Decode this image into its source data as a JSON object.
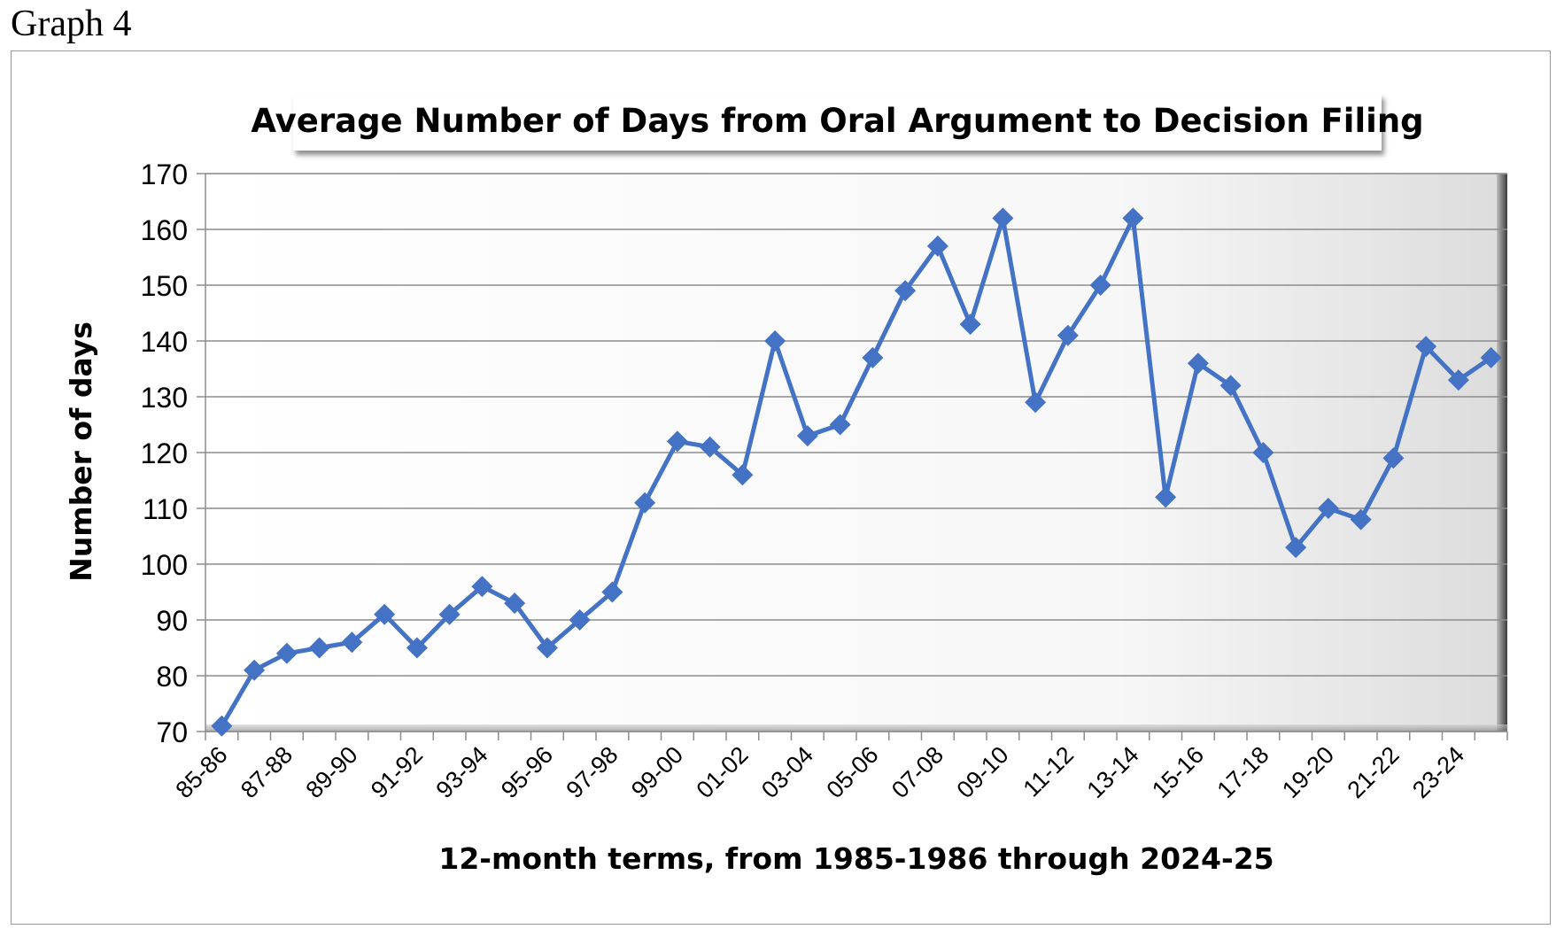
{
  "page": {
    "label": "Graph 4"
  },
  "chart_data": {
    "type": "line",
    "title": "Average Number of Days from Oral Argument to Decision Filing",
    "xlabel": "12-month terms, from 1985-1986 through 2024-25",
    "ylabel": "Number of days",
    "ylim": [
      70,
      170
    ],
    "yticks": [
      70,
      80,
      90,
      100,
      110,
      120,
      130,
      140,
      150,
      160,
      170
    ],
    "grid": true,
    "legend": "none",
    "line_color": "#4472C4",
    "marker": "diamond",
    "categories": [
      "85-86",
      "86-87",
      "87-88",
      "88-89",
      "89-90",
      "90-91",
      "91-92",
      "92-93",
      "93-94",
      "94-95",
      "95-96",
      "96-97",
      "97-98",
      "98-99",
      "99-00",
      "00-01",
      "01-02",
      "02-03",
      "03-04",
      "04-05",
      "05-06",
      "06-07",
      "07-08",
      "08-09",
      "09-10",
      "10-11",
      "11-12",
      "12-13",
      "13-14",
      "14-15",
      "15-16",
      "16-17",
      "17-18",
      "18-19",
      "19-20",
      "20-21",
      "21-22",
      "22-23",
      "23-24",
      "24-25"
    ],
    "visible_tick_labels": [
      "85-86",
      "87-88",
      "89-90",
      "91-92",
      "93-94",
      "95-96",
      "97-98",
      "99-00",
      "01-02",
      "03-04",
      "05-06",
      "07-08",
      "09-10",
      "11-12",
      "13-14",
      "15-16",
      "17-18",
      "19-20",
      "21-22",
      "23-24"
    ],
    "series": [
      {
        "values": [
          71,
          81,
          84,
          85,
          86,
          91,
          85,
          91,
          96,
          93,
          85,
          90,
          95,
          111,
          122,
          121,
          116,
          140,
          123,
          125,
          137,
          149,
          157,
          143,
          162,
          129,
          141,
          150,
          162,
          112,
          136,
          132,
          120,
          103,
          110,
          108,
          119,
          139,
          133,
          137
        ]
      }
    ]
  }
}
